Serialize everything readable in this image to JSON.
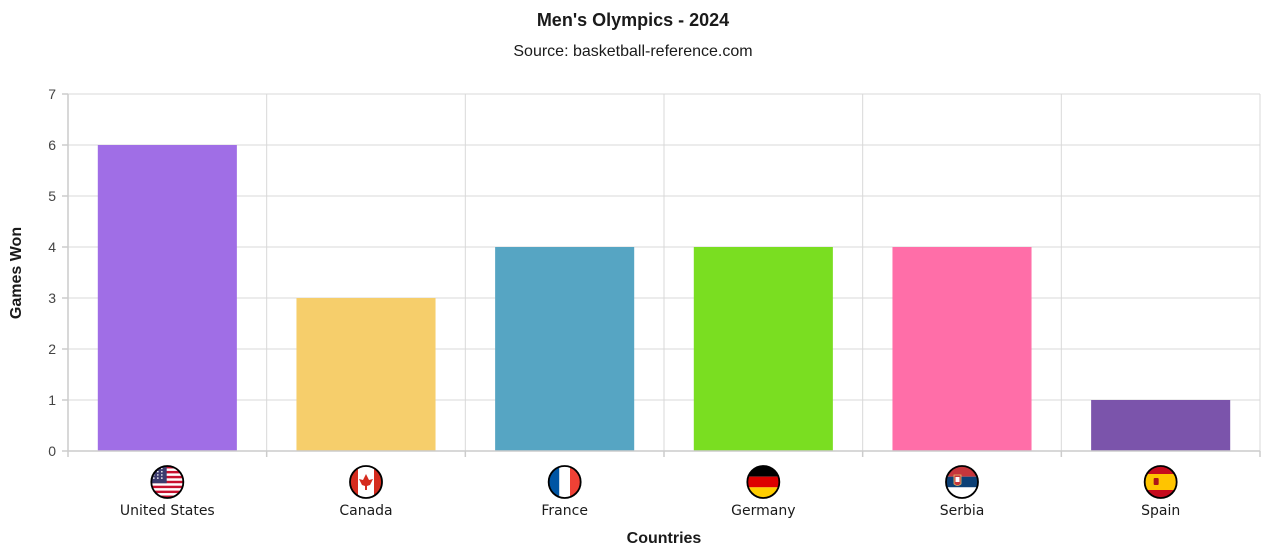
{
  "chart_data": {
    "type": "bar",
    "title": "Men's Olympics - 2024",
    "subtitle": "Source: basketball-reference.com",
    "xlabel": "Countries",
    "ylabel": "Games Won",
    "ylim": [
      0,
      7
    ],
    "yticks": [
      "0",
      "1",
      "2",
      "3",
      "4",
      "5",
      "6",
      "7"
    ],
    "grid": true,
    "categories": [
      "United States",
      "Canada",
      "France",
      "Germany",
      "Serbia",
      "Spain"
    ],
    "values": [
      6,
      3,
      4,
      4,
      4,
      1
    ],
    "colors": [
      "#a06ee6",
      "#f6ce6b",
      "#56a5c3",
      "#7ade21",
      "#ff6ea8",
      "#7b54ab"
    ],
    "flag_icons": [
      "us-flag-icon",
      "canada-flag-icon",
      "france-flag-icon",
      "germany-flag-icon",
      "serbia-flag-icon",
      "spain-flag-icon"
    ]
  }
}
